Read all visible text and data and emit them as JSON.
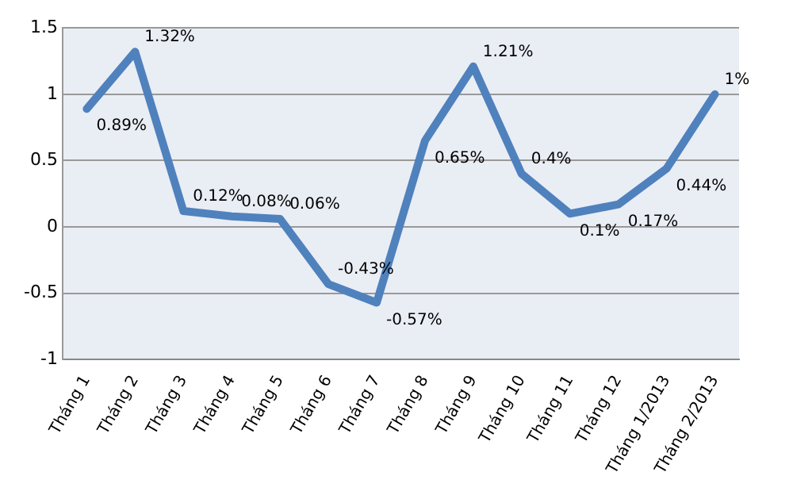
{
  "chart_data": {
    "type": "line",
    "categories": [
      "Tháng 1",
      "Tháng 2",
      "Tháng 3",
      "Tháng 4",
      "Tháng 5",
      "Tháng 6",
      "Tháng 7",
      "Tháng 8",
      "Tháng 9",
      "Tháng 10",
      "Tháng 11",
      "Tháng 12",
      "Tháng 1/2013",
      "Tháng 2/2013"
    ],
    "series": [
      {
        "color": "#4f81bd",
        "values": [
          0.89,
          1.32,
          0.12,
          0.08,
          0.06,
          -0.43,
          -0.57,
          0.65,
          1.21,
          0.4,
          0.1,
          0.17,
          0.44,
          1
        ],
        "value_labels": [
          "0.89%",
          "1.32%",
          "0.12%",
          "0.08%",
          "0.06%",
          "-0.43%",
          "-0.57%",
          "0.65%",
          "1.21%",
          "0.4%",
          "0.1%",
          "0.17%",
          "0.44%",
          "1%"
        ]
      }
    ],
    "ylim": [
      -1,
      1.5
    ],
    "yticks": [
      -1,
      -0.5,
      0,
      0.5,
      1,
      1.5
    ],
    "grid": "y",
    "legend": false,
    "marker": "none",
    "line_style": "solid"
  }
}
